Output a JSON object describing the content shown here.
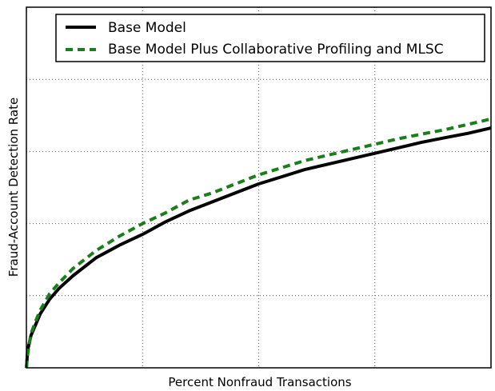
{
  "chart_data": {
    "type": "line",
    "title": "",
    "xlabel": "Percent Nonfraud Transactions",
    "ylabel": "Fraud-Account Detection Rate",
    "xlim": [
      0,
      100
    ],
    "ylim": [
      0,
      100
    ],
    "x_tick_labels": [],
    "y_tick_labels": [],
    "grid": true,
    "legend_position": "top",
    "series": [
      {
        "name": "Base Model",
        "color": "#000000",
        "line_style": "solid",
        "x": [
          0,
          0.3,
          1,
          2,
          3,
          5,
          7,
          10,
          15,
          20,
          25,
          30,
          35,
          40,
          45,
          50,
          55,
          60,
          65,
          70,
          75,
          80,
          85,
          90,
          95,
          100
        ],
        "y": [
          0,
          5,
          9,
          12,
          15,
          19,
          22,
          25.5,
          30.5,
          34,
          37,
          40.5,
          43.5,
          46,
          48.5,
          51,
          53,
          55,
          56.5,
          58,
          59.5,
          61,
          62.5,
          63.8,
          65,
          66.5
        ]
      },
      {
        "name": "Base Model Plus Collaborative Profiling and MLSC",
        "color": "#1a7f1a",
        "line_style": "dashed",
        "x": [
          0,
          0.3,
          1,
          2,
          3,
          5,
          7,
          10,
          15,
          20,
          25,
          30,
          35,
          40,
          45,
          50,
          55,
          60,
          65,
          70,
          75,
          80,
          85,
          90,
          95,
          100
        ],
        "y": [
          0,
          4,
          9.5,
          13,
          16,
          20.5,
          23.5,
          27.5,
          32.5,
          36.5,
          40,
          43,
          46.5,
          48.5,
          51,
          53.5,
          55.5,
          57.5,
          59,
          60.5,
          62,
          63.5,
          64.8,
          66,
          67.5,
          69
        ]
      }
    ]
  }
}
